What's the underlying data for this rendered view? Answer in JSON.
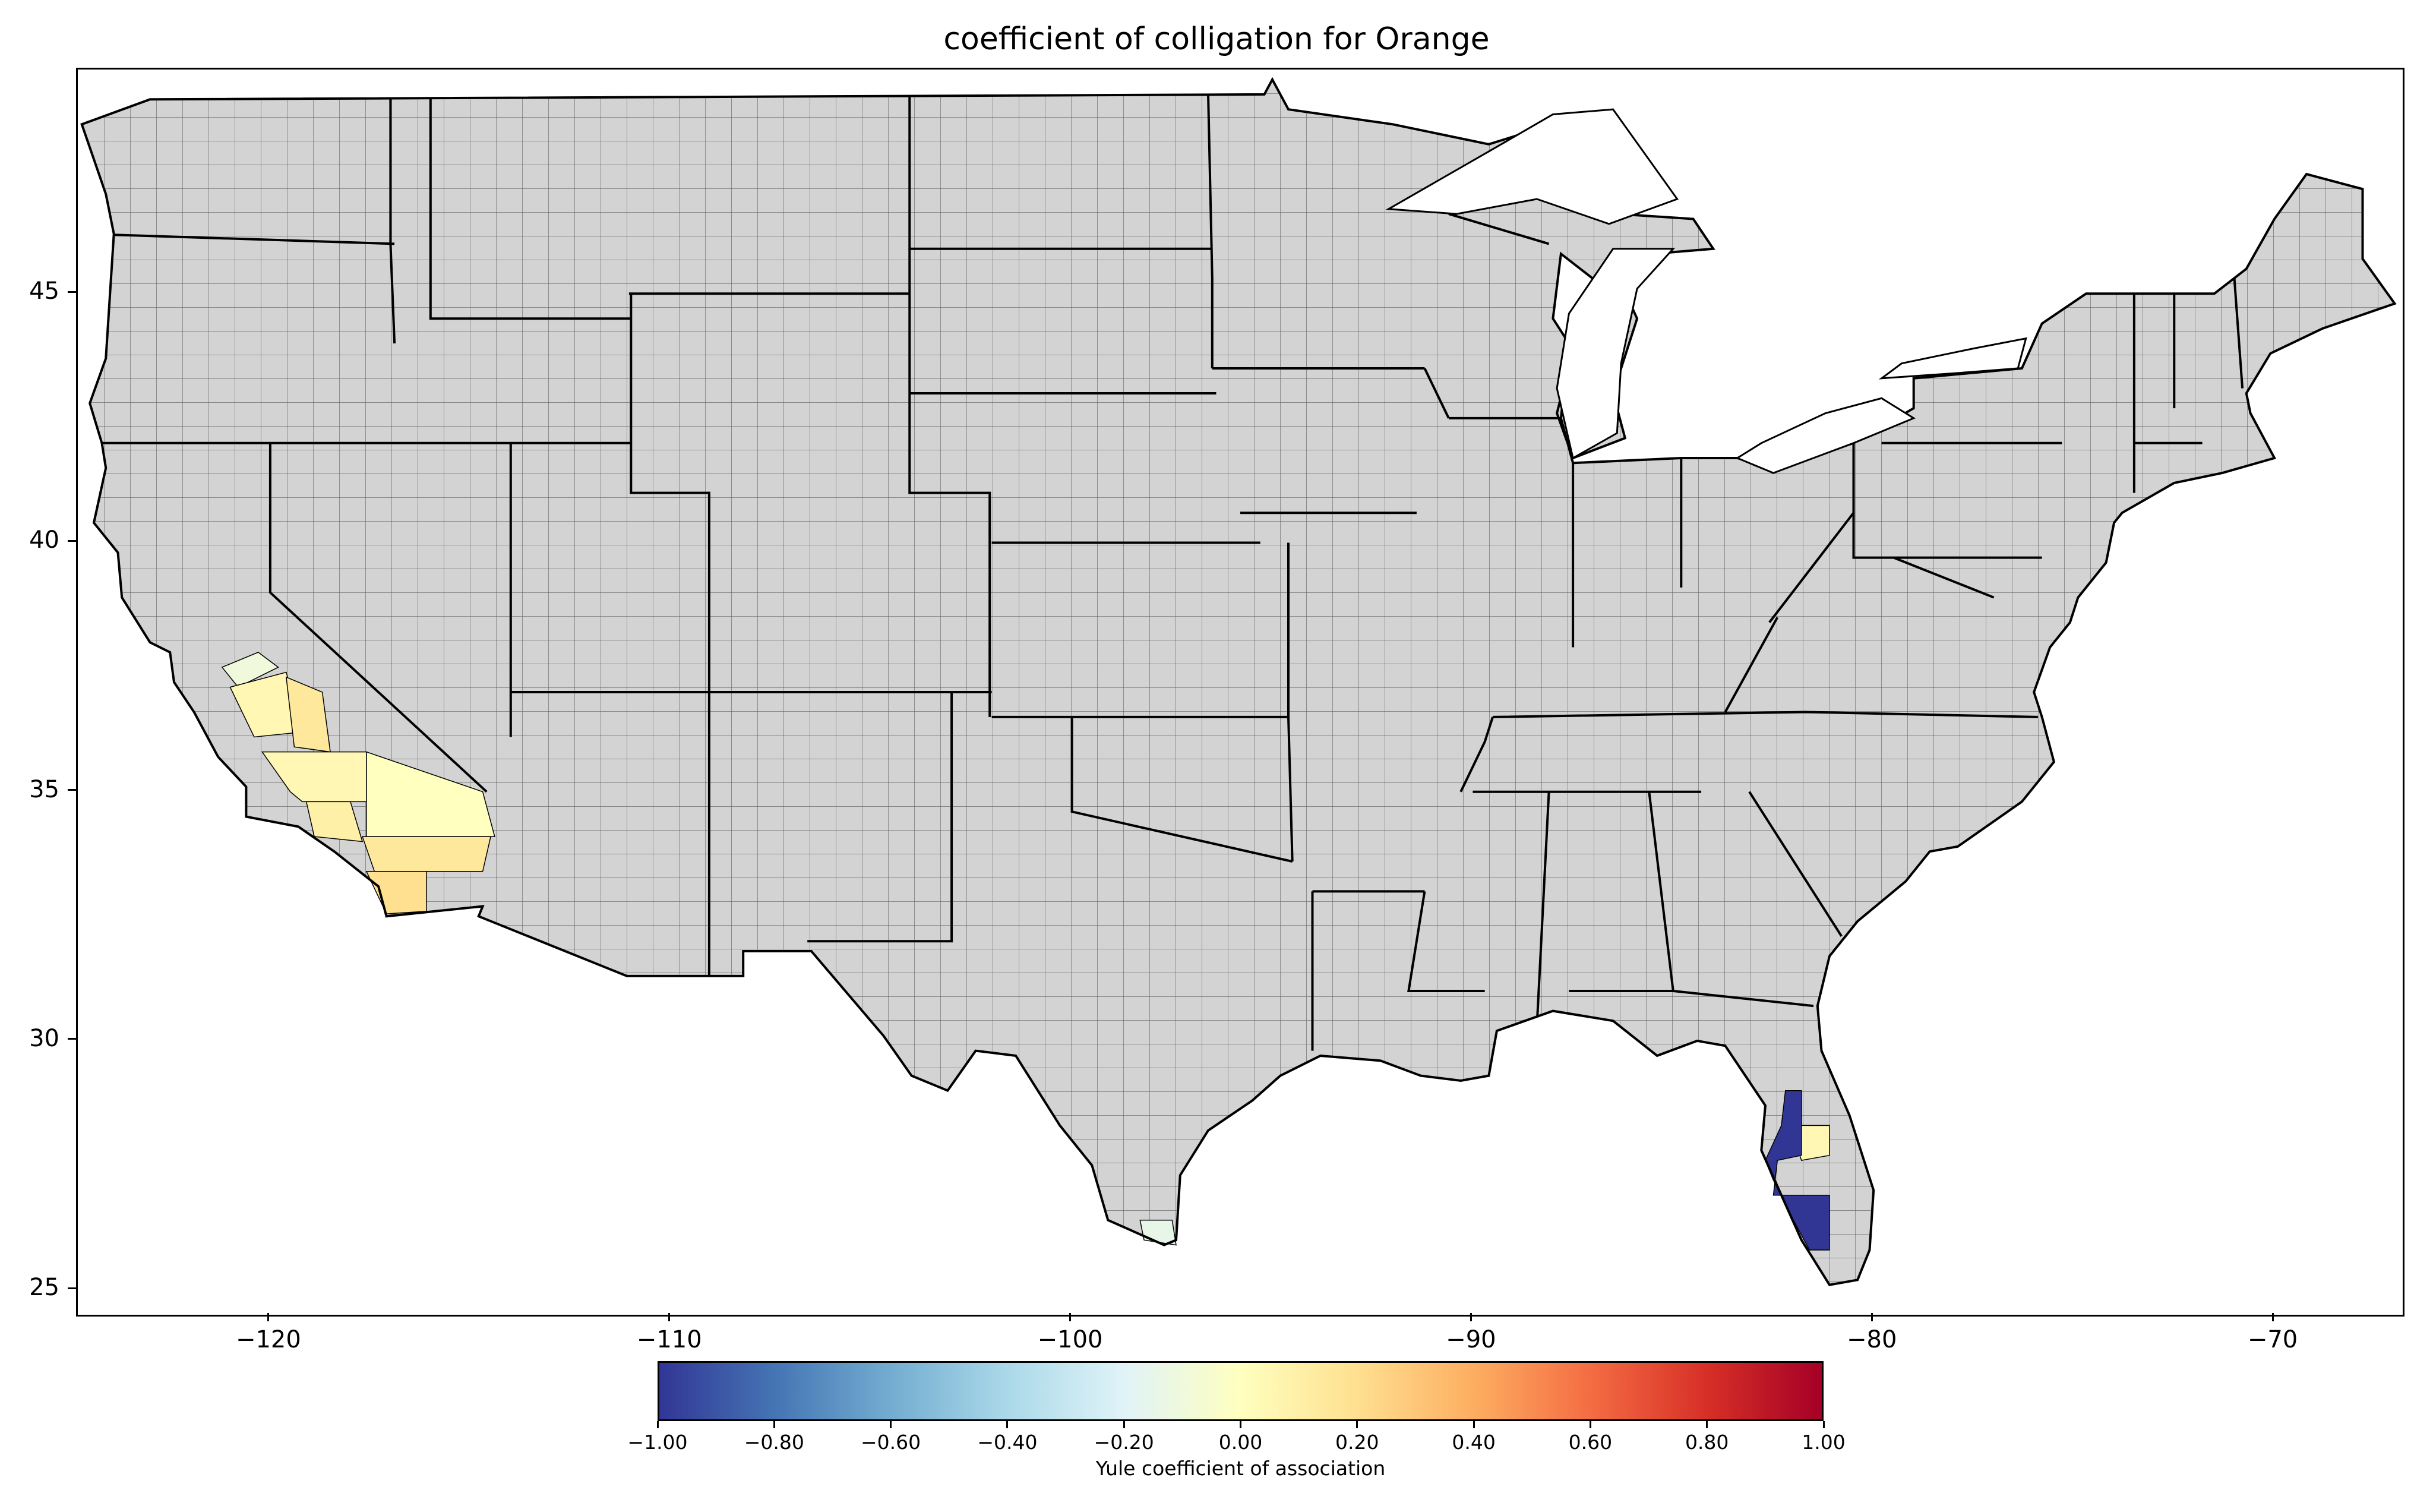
{
  "title": "coefficient of colligation for Orange",
  "map": {
    "x_ticks": [
      {
        "value": -120,
        "label": "−120"
      },
      {
        "value": -110,
        "label": "−110"
      },
      {
        "value": -100,
        "label": "−100"
      },
      {
        "value": -90,
        "label": "−90"
      },
      {
        "value": -80,
        "label": "−80"
      },
      {
        "value": -70,
        "label": "−70"
      }
    ],
    "y_ticks": [
      {
        "value": 25,
        "label": "25"
      },
      {
        "value": 30,
        "label": "30"
      },
      {
        "value": 35,
        "label": "35"
      },
      {
        "value": 40,
        "label": "40"
      },
      {
        "value": 45,
        "label": "45"
      }
    ],
    "x_range": [
      -124.8,
      -66.8
    ],
    "y_range": [
      24.5,
      49.5
    ],
    "base_fill": "#d3d3d3",
    "outline_color": "#000000",
    "highlighted_regions": [
      {
        "region": "California Central Valley (north)",
        "coefficient": -0.1
      },
      {
        "region": "California Central Valley",
        "coefficient": 0.05
      },
      {
        "region": "California Sierra foothills",
        "coefficient": 0.15
      },
      {
        "region": "California Kern",
        "coefficient": 0.05
      },
      {
        "region": "California San Bernardino",
        "coefficient": 0.0
      },
      {
        "region": "California Los Angeles / Ventura",
        "coefficient": 0.1
      },
      {
        "region": "California Riverside",
        "coefficient": 0.15
      },
      {
        "region": "California San Diego / Orange",
        "coefficient": 0.2
      },
      {
        "region": "Texas Rio Grande Valley",
        "coefficient": -0.15
      },
      {
        "region": "Florida Polk",
        "coefficient": 0.05
      },
      {
        "region": "Florida central / southwest counties",
        "coefficient": -1.0
      }
    ]
  },
  "colorbar": {
    "label": "Yule coefficient of association",
    "ticks": [
      "−1.00",
      "−0.80",
      "−0.60",
      "−0.40",
      "−0.20",
      "0.00",
      "0.20",
      "0.40",
      "0.60",
      "0.80",
      "1.00"
    ],
    "colormap": "RdYlBu_r",
    "stops": [
      "#313695",
      "#4575b4",
      "#74add1",
      "#abd9e9",
      "#e0f3f8",
      "#ffffbf",
      "#fee090",
      "#fdae61",
      "#f46d43",
      "#d73027",
      "#a50026"
    ]
  }
}
